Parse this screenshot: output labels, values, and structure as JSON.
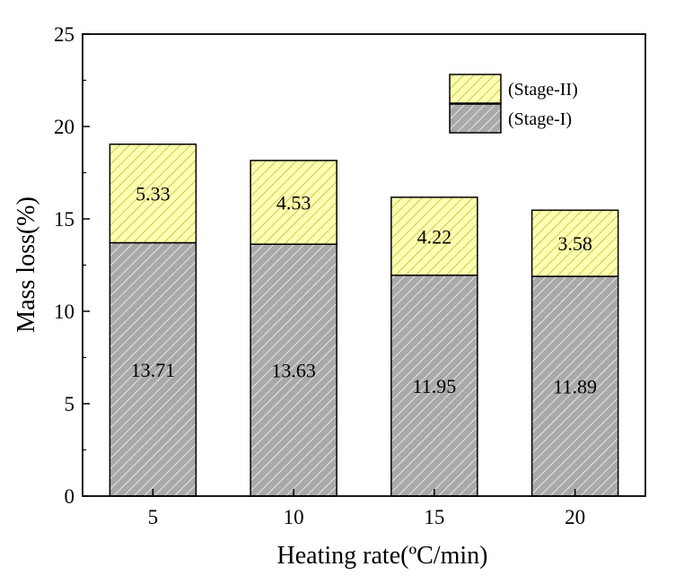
{
  "chart_data": {
    "type": "bar",
    "stacked": true,
    "title": "",
    "xlabel": "Heating rate(ºC/min)",
    "ylabel": "Mass loss(%)",
    "categories": [
      "5",
      "10",
      "15",
      "20"
    ],
    "ylim": [
      0,
      25
    ],
    "yticks": [
      "0",
      "5",
      "10",
      "15",
      "20",
      "25"
    ],
    "grid": false,
    "legend_position": "top-right",
    "series": [
      {
        "name": "(Stage-I)",
        "values": [
          13.71,
          13.63,
          11.95,
          11.89
        ],
        "labels": [
          "13.71",
          "13.63",
          "11.95",
          "11.89"
        ],
        "color": "#a9a9a9",
        "hatch_color": "#ffffff"
      },
      {
        "name": "(Stage-II)",
        "values": [
          5.33,
          4.53,
          4.22,
          3.58
        ],
        "labels": [
          "5.33",
          "4.53",
          "4.22",
          "3.58"
        ],
        "color": "#ffffb3",
        "hatch_color": "#bdbd32"
      }
    ]
  }
}
